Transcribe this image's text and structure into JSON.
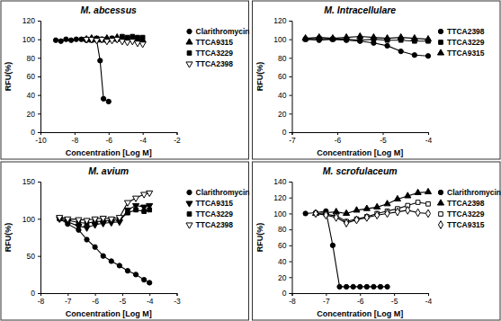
{
  "chart_data": [
    {
      "type": "line",
      "title": "M. abcessus",
      "x_label": "Concentration [Log M]",
      "y_label": "RFU(%)",
      "xlim": [
        -10,
        -2
      ],
      "xticks": [
        -10,
        -8,
        -6,
        -4,
        -2
      ],
      "ylim": [
        0,
        120
      ],
      "yticks": [
        0,
        20,
        40,
        60,
        80,
        100,
        120
      ],
      "grid": false,
      "legend": "right",
      "series": [
        {
          "name": "Clarithromycin",
          "color": "#000000",
          "marker": "circle",
          "line_style": "solid",
          "x": [
            -9.1,
            -8.8,
            -8.5,
            -8.2,
            -7.9,
            -7.6,
            -7.3,
            -7.0,
            -6.7,
            -6.5,
            -6.3,
            -6.0
          ],
          "values": [
            99,
            98,
            100,
            99,
            100,
            100,
            99,
            100,
            99,
            77,
            36,
            33
          ]
        },
        {
          "name": "TTCA9315",
          "color": "#000000",
          "marker": "triangle",
          "line_style": "solid",
          "x": [
            -7.3,
            -7.0,
            -6.7,
            -6.4,
            -6.1,
            -5.8,
            -5.5,
            -5.2,
            -4.9,
            -4.6,
            -4.3,
            -4.0
          ],
          "values": [
            100,
            101,
            100,
            99,
            101,
            100,
            102,
            101,
            100,
            101,
            100,
            99
          ]
        },
        {
          "name": "TTCA3229",
          "color": "#000000",
          "marker": "square",
          "line_style": "solid",
          "x": [
            -7.3,
            -7.0,
            -6.7,
            -6.4,
            -6.1,
            -5.8,
            -5.5,
            -5.2,
            -4.9,
            -4.6,
            -4.3,
            -4.0
          ],
          "values": [
            100,
            99,
            101,
            100,
            99,
            101,
            100,
            103,
            102,
            103,
            102,
            102
          ]
        },
        {
          "name": "TTCA2398",
          "color": "#000000",
          "marker": "triangle-down-open",
          "line_style": "solid",
          "x": [
            -7.3,
            -7.0,
            -6.7,
            -6.4,
            -6.1,
            -5.8,
            -5.5,
            -5.2,
            -4.9,
            -4.6,
            -4.3,
            -4.0
          ],
          "values": [
            100,
            100,
            99,
            100,
            98,
            99,
            100,
            98,
            97,
            98,
            96,
            95
          ]
        }
      ]
    },
    {
      "type": "line",
      "title": "M. Intracellulare",
      "x_label": "Concentration [Log M]",
      "y_label": "RFU(%)",
      "xlim": [
        -7,
        -4
      ],
      "xticks": [
        -7,
        -6,
        -5,
        -4
      ],
      "ylim": [
        0,
        120
      ],
      "yticks": [
        0,
        20,
        40,
        60,
        80,
        100,
        120
      ],
      "grid": false,
      "legend": "right",
      "series": [
        {
          "name": "TTCA2398",
          "color": "#000000",
          "marker": "circle",
          "line_style": "solid",
          "x": [
            -6.7,
            -6.4,
            -6.1,
            -5.8,
            -5.5,
            -5.2,
            -4.9,
            -4.6,
            -4.3,
            -4.0
          ],
          "values": [
            100,
            99,
            100,
            99,
            98,
            96,
            93,
            87,
            83,
            82
          ]
        },
        {
          "name": "TTCA3229",
          "color": "#000000",
          "marker": "square",
          "line_style": "solid",
          "x": [
            -6.7,
            -6.4,
            -6.1,
            -5.8,
            -5.5,
            -5.2,
            -4.9,
            -4.6,
            -4.3,
            -4.0
          ],
          "values": [
            100,
            101,
            100,
            100,
            99,
            100,
            99,
            99,
            98,
            98
          ]
        },
        {
          "name": "TTCA9315",
          "color": "#000000",
          "marker": "triangle",
          "line_style": "solid",
          "x": [
            -6.7,
            -6.4,
            -6.1,
            -5.8,
            -5.5,
            -5.2,
            -4.9,
            -4.6,
            -4.3,
            -4.0
          ],
          "values": [
            101,
            102,
            101,
            102,
            103,
            102,
            101,
            102,
            101,
            100
          ]
        }
      ]
    },
    {
      "type": "line",
      "title": "M. avium",
      "x_label": "Concentration [Log M]",
      "y_label": "RFU(%)",
      "xlim": [
        -8,
        -3
      ],
      "xticks": [
        -8,
        -7,
        -6,
        -5,
        -4,
        -3
      ],
      "ylim": [
        0,
        150
      ],
      "yticks": [
        0,
        50,
        100,
        150
      ],
      "grid": false,
      "legend": "right",
      "series": [
        {
          "name": "Clarithromycin",
          "color": "#000000",
          "marker": "circle",
          "line_style": "solid",
          "x": [
            -7.3,
            -7.0,
            -6.6,
            -6.3,
            -6.0,
            -5.7,
            -5.4,
            -5.1,
            -4.8,
            -4.5,
            -4.2,
            -4.0
          ],
          "values": [
            100,
            93,
            85,
            72,
            62,
            50,
            43,
            37,
            30,
            25,
            18,
            14
          ]
        },
        {
          "name": "TTCA9315",
          "color": "#000000",
          "marker": "triangle-down",
          "line_style": "solid",
          "x": [
            -7.3,
            -7.0,
            -6.6,
            -6.3,
            -6.0,
            -5.7,
            -5.4,
            -5.1,
            -4.8,
            -4.5,
            -4.2,
            -4.0
          ],
          "values": [
            100,
            96,
            90,
            88,
            92,
            94,
            95,
            96,
            112,
            118,
            116,
            118
          ]
        },
        {
          "name": "TTCA3229",
          "color": "#000000",
          "marker": "square",
          "line_style": "solid",
          "x": [
            -7.3,
            -7.0,
            -6.6,
            -6.3,
            -6.0,
            -5.7,
            -5.4,
            -5.1,
            -4.8,
            -4.5,
            -4.2,
            -4.0
          ],
          "values": [
            100,
            98,
            95,
            94,
            96,
            97,
            98,
            99,
            108,
            112,
            110,
            112
          ]
        },
        {
          "name": "TTCA2398",
          "color": "#000000",
          "marker": "triangle-down-open",
          "line_style": "solid",
          "x": [
            -7.3,
            -7.0,
            -6.6,
            -6.3,
            -6.0,
            -5.7,
            -5.4,
            -5.1,
            -4.8,
            -4.5,
            -4.2,
            -4.0
          ],
          "values": [
            102,
            100,
            99,
            98,
            100,
            101,
            100,
            102,
            122,
            128,
            133,
            135
          ]
        }
      ]
    },
    {
      "type": "line",
      "title": "M. scrofulaceum",
      "x_label": "Concentration [Log M]",
      "y_label": "RFU(%)",
      "xlim": [
        -8,
        -4
      ],
      "xticks": [
        -8,
        -7,
        -6,
        -5,
        -4
      ],
      "ylim": [
        0,
        140
      ],
      "yticks": [
        0,
        20,
        40,
        60,
        80,
        100,
        120,
        140
      ],
      "grid": false,
      "legend": "right",
      "series": [
        {
          "name": "Clarithromycin",
          "color": "#000000",
          "marker": "circle",
          "line_style": "solid",
          "x": [
            -7.6,
            -7.3,
            -7.0,
            -6.8,
            -6.6,
            -6.4,
            -6.2,
            -6.0,
            -5.8,
            -5.6,
            -5.4,
            -5.2
          ],
          "values": [
            100,
            101,
            103,
            60,
            8,
            8,
            8,
            8,
            8,
            8,
            8,
            8
          ]
        },
        {
          "name": "TTCA2398",
          "color": "#000000",
          "marker": "triangle",
          "line_style": "solid",
          "x": [
            -7.3,
            -7.0,
            -6.7,
            -6.4,
            -6.1,
            -5.8,
            -5.5,
            -5.2,
            -4.9,
            -4.6,
            -4.3,
            -4.0
          ],
          "values": [
            100,
            101,
            102,
            100,
            104,
            106,
            108,
            112,
            118,
            122,
            126,
            127
          ]
        },
        {
          "name": "TTCA3229",
          "color": "#000000",
          "marker": "square-open",
          "line_style": "solid",
          "x": [
            -7.3,
            -7.0,
            -6.7,
            -6.4,
            -6.1,
            -5.8,
            -5.5,
            -5.2,
            -4.9,
            -4.6,
            -4.3,
            -4.0
          ],
          "values": [
            100,
            99,
            97,
            90,
            93,
            96,
            100,
            103,
            106,
            110,
            114,
            112
          ]
        },
        {
          "name": "TTCA9315",
          "color": "#000000",
          "marker": "diamond-open",
          "line_style": "solid",
          "x": [
            -7.3,
            -7.0,
            -6.7,
            -6.4,
            -6.1,
            -5.8,
            -5.5,
            -5.2,
            -4.9,
            -4.6,
            -4.3,
            -4.0
          ],
          "values": [
            100,
            98,
            95,
            88,
            92,
            95,
            98,
            100,
            102,
            104,
            101,
            100
          ]
        }
      ]
    }
  ]
}
